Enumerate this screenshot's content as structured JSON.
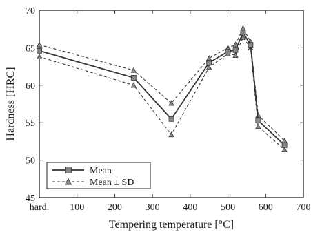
{
  "chart_data": {
    "type": "line",
    "xlabel": "Tempering temperature  [°C]",
    "ylabel": "Hardness [HRC]",
    "xlim": [
      0,
      700
    ],
    "ylim": [
      45,
      70
    ],
    "x_ticks": [
      {
        "value": 0,
        "label": "hard."
      },
      {
        "value": 100,
        "label": "100"
      },
      {
        "value": 200,
        "label": "200"
      },
      {
        "value": 300,
        "label": "300"
      },
      {
        "value": 400,
        "label": "400"
      },
      {
        "value": 500,
        "label": "500"
      },
      {
        "value": 600,
        "label": "600"
      },
      {
        "value": 700,
        "label": "700"
      }
    ],
    "y_ticks": [
      45,
      50,
      55,
      60,
      65,
      70
    ],
    "grid": false,
    "legend_position": "bottom-left",
    "series": [
      {
        "name": "Mean",
        "style": "solid",
        "marker": "square",
        "x": [
          0,
          250,
          350,
          450,
          500,
          520,
          540,
          560,
          580,
          650
        ],
        "values": [
          64.6,
          61.0,
          55.5,
          63.0,
          64.5,
          64.7,
          67.0,
          65.4,
          55.3,
          52.0
        ]
      },
      {
        "name": "Mean ± SD",
        "style": "dashed",
        "marker": "triangle",
        "x": [
          0,
          250,
          350,
          450,
          500,
          520,
          540,
          560,
          580,
          650
        ],
        "values": [
          65.4,
          62.0,
          57.6,
          63.6,
          65.0,
          65.4,
          67.6,
          65.8,
          56.0,
          52.6
        ]
      },
      {
        "name": "Mean ± SD",
        "style": "dashed",
        "marker": "triangle",
        "x": [
          0,
          250,
          350,
          450,
          500,
          520,
          540,
          560,
          580,
          650
        ],
        "values": [
          63.8,
          60.0,
          53.4,
          62.4,
          64.2,
          64.0,
          66.4,
          65.0,
          54.5,
          51.4
        ]
      }
    ],
    "colors": {
      "line": "#333333",
      "marker_fill": "#888888",
      "axis": "#222222"
    }
  },
  "legend": {
    "items": [
      {
        "label": "Mean",
        "style": "solid",
        "marker": "square"
      },
      {
        "label": "Mean ± SD",
        "style": "dashed",
        "marker": "triangle"
      }
    ]
  }
}
